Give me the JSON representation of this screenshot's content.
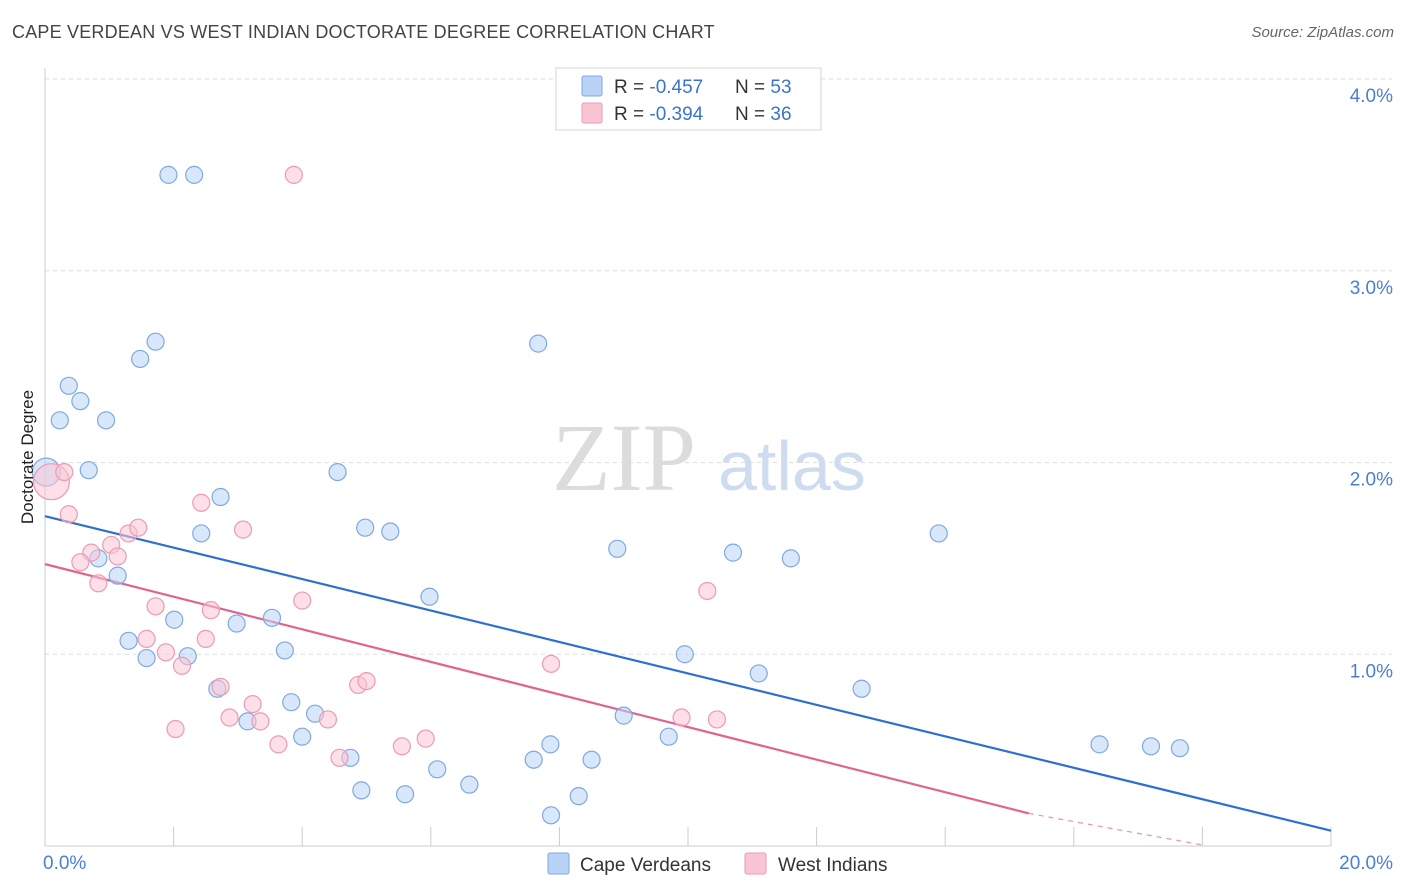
{
  "title": "CAPE VERDEAN VS WEST INDIAN DOCTORATE DEGREE CORRELATION CHART",
  "source": "Source: ZipAtlas.com",
  "watermark": {
    "zip": "ZIP",
    "atlas": "atlas"
  },
  "colors": {
    "blue_fill": "#b8d3f5",
    "blue_stroke": "#7fa9e0",
    "blue_line": "#2f6fd0",
    "pink_fill": "#f9c4d4",
    "pink_stroke": "#ee9ab4",
    "pink_line": "#e0648f",
    "grid": "#dddddd",
    "tick_text": "#4a7fd4"
  },
  "legend_top": {
    "rows": [
      {
        "r_label": "R = ",
        "r_value": "-0.457",
        "n_label": "N = ",
        "n_value": "53"
      },
      {
        "r_label": "R = ",
        "r_value": "-0.394",
        "n_label": "N = ",
        "n_value": "36"
      }
    ]
  },
  "chart_data": {
    "type": "scatter",
    "ylabel": "Doctorate Degree",
    "xlim": [
      0,
      20
    ],
    "ylim": [
      0,
      4.0
    ],
    "x_tick_labels": [
      "0.0%",
      "20.0%"
    ],
    "y_tick_labels": [
      "1.0%",
      "2.0%",
      "3.0%",
      "4.0%"
    ],
    "y_ticks": [
      1,
      2,
      3,
      4
    ],
    "grid": true,
    "legend_position": "bottom-center",
    "series": [
      {
        "name": "Cape Verdeans",
        "color": "blue",
        "trend": {
          "x": [
            0,
            20
          ],
          "y": [
            1.72,
            0.08
          ]
        },
        "points": [
          {
            "x": 0.02,
            "y": 1.95,
            "r": 14
          },
          {
            "x": 1.92,
            "y": 3.5
          },
          {
            "x": 2.32,
            "y": 3.5
          },
          {
            "x": 1.72,
            "y": 2.63
          },
          {
            "x": 1.48,
            "y": 2.54
          },
          {
            "x": 0.37,
            "y": 2.4
          },
          {
            "x": 0.55,
            "y": 2.32
          },
          {
            "x": 0.23,
            "y": 2.22
          },
          {
            "x": 0.95,
            "y": 2.22
          },
          {
            "x": 0.68,
            "y": 1.96
          },
          {
            "x": 2.73,
            "y": 1.82
          },
          {
            "x": 2.43,
            "y": 1.63
          },
          {
            "x": 0.83,
            "y": 1.5
          },
          {
            "x": 1.13,
            "y": 1.41
          },
          {
            "x": 3.53,
            "y": 1.19
          },
          {
            "x": 2.01,
            "y": 1.18
          },
          {
            "x": 2.98,
            "y": 1.16
          },
          {
            "x": 1.3,
            "y": 1.07
          },
          {
            "x": 3.73,
            "y": 1.02
          },
          {
            "x": 1.58,
            "y": 0.98
          },
          {
            "x": 2.22,
            "y": 0.99
          },
          {
            "x": 2.68,
            "y": 0.82
          },
          {
            "x": 3.83,
            "y": 0.75
          },
          {
            "x": 4.2,
            "y": 0.69
          },
          {
            "x": 3.15,
            "y": 0.65
          },
          {
            "x": 4.0,
            "y": 0.57
          },
          {
            "x": 4.75,
            "y": 0.46
          },
          {
            "x": 4.92,
            "y": 0.29
          },
          {
            "x": 5.6,
            "y": 0.27
          },
          {
            "x": 6.1,
            "y": 0.4
          },
          {
            "x": 6.6,
            "y": 0.32
          },
          {
            "x": 7.6,
            "y": 0.45
          },
          {
            "x": 7.86,
            "y": 0.53
          },
          {
            "x": 7.87,
            "y": 0.16
          },
          {
            "x": 8.3,
            "y": 0.26
          },
          {
            "x": 8.5,
            "y": 0.45
          },
          {
            "x": 9.0,
            "y": 0.68
          },
          {
            "x": 9.7,
            "y": 0.57
          },
          {
            "x": 4.55,
            "y": 1.95
          },
          {
            "x": 4.98,
            "y": 1.66
          },
          {
            "x": 5.37,
            "y": 1.64
          },
          {
            "x": 5.98,
            "y": 1.3
          },
          {
            "x": 7.67,
            "y": 2.62
          },
          {
            "x": 8.9,
            "y": 1.55
          },
          {
            "x": 9.95,
            "y": 1.0
          },
          {
            "x": 10.7,
            "y": 1.53
          },
          {
            "x": 11.1,
            "y": 0.9
          },
          {
            "x": 11.6,
            "y": 1.5
          },
          {
            "x": 12.7,
            "y": 0.82
          },
          {
            "x": 13.9,
            "y": 1.63
          },
          {
            "x": 16.4,
            "y": 0.53
          },
          {
            "x": 17.2,
            "y": 0.52
          },
          {
            "x": 17.65,
            "y": 0.51
          }
        ]
      },
      {
        "name": "West Indians",
        "color": "pink",
        "trend": {
          "x": [
            0,
            15.3
          ],
          "y": [
            1.47,
            0.17
          ]
        },
        "trend_dashed": {
          "x": [
            15.3,
            18
          ],
          "y": [
            0.17,
            -0.06
          ]
        },
        "points": [
          {
            "x": 0.1,
            "y": 1.9,
            "r": 18
          },
          {
            "x": 3.87,
            "y": 3.5
          },
          {
            "x": 0.37,
            "y": 1.73
          },
          {
            "x": 0.72,
            "y": 1.53
          },
          {
            "x": 0.55,
            "y": 1.48
          },
          {
            "x": 0.83,
            "y": 1.37
          },
          {
            "x": 1.03,
            "y": 1.57
          },
          {
            "x": 1.13,
            "y": 1.51
          },
          {
            "x": 1.3,
            "y": 1.63
          },
          {
            "x": 1.45,
            "y": 1.66
          },
          {
            "x": 1.72,
            "y": 1.25
          },
          {
            "x": 1.58,
            "y": 1.08
          },
          {
            "x": 1.88,
            "y": 1.01
          },
          {
            "x": 2.13,
            "y": 0.94
          },
          {
            "x": 2.43,
            "y": 1.79
          },
          {
            "x": 2.58,
            "y": 1.23
          },
          {
            "x": 2.5,
            "y": 1.08
          },
          {
            "x": 3.08,
            "y": 1.65
          },
          {
            "x": 2.73,
            "y": 0.83
          },
          {
            "x": 2.87,
            "y": 0.67
          },
          {
            "x": 3.23,
            "y": 0.74
          },
          {
            "x": 3.35,
            "y": 0.65
          },
          {
            "x": 3.63,
            "y": 0.53
          },
          {
            "x": 4.0,
            "y": 1.28
          },
          {
            "x": 4.4,
            "y": 0.66
          },
          {
            "x": 4.58,
            "y": 0.46
          },
          {
            "x": 4.87,
            "y": 0.84
          },
          {
            "x": 5.0,
            "y": 0.86
          },
          {
            "x": 5.55,
            "y": 0.52
          },
          {
            "x": 5.92,
            "y": 0.56
          },
          {
            "x": 2.03,
            "y": 0.61
          },
          {
            "x": 7.87,
            "y": 0.95
          },
          {
            "x": 9.9,
            "y": 0.67
          },
          {
            "x": 10.3,
            "y": 1.33
          },
          {
            "x": 10.45,
            "y": 0.66
          },
          {
            "x": 0.3,
            "y": 1.95
          }
        ]
      }
    ]
  }
}
